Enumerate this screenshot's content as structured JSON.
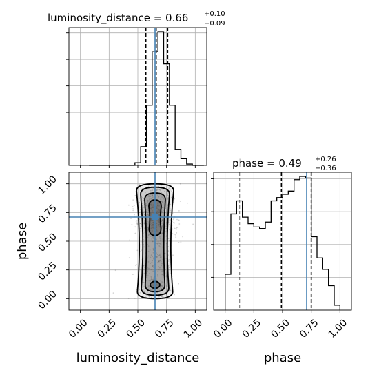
{
  "chart_data": [
    {
      "type": "histogram",
      "panel": "luminosity_distance 1D marginal",
      "title": "luminosity_distance = 0.66",
      "title_sup": "+0.10",
      "title_sub": "−0.09",
      "bins": [
        0.075,
        0.125,
        0.175,
        0.225,
        0.275,
        0.325,
        0.375,
        0.425,
        0.475,
        0.525,
        0.575,
        0.625,
        0.675,
        0.725,
        0.775,
        0.825,
        0.875,
        0.925,
        0.975,
        1.025
      ],
      "values": [
        0,
        0,
        0,
        0,
        0,
        0,
        0,
        0,
        0.02,
        0.14,
        0.45,
        0.85,
        1.0,
        0.76,
        0.45,
        0.12,
        0.05,
        0.01,
        0,
        0
      ],
      "quantiles": [
        0.57,
        0.66,
        0.76
      ],
      "truth": 0.65,
      "xlim": [
        -0.1,
        1.1
      ],
      "grid": true
    },
    {
      "type": "scatter",
      "panel": "phase vs luminosity_distance 2D",
      "xlabel": "luminosity_distance",
      "ylabel": "phase",
      "xticks": [
        "0.00",
        "0.25",
        "0.50",
        "0.75",
        "1.00"
      ],
      "yticks": [
        "0.00",
        "0.25",
        "0.50",
        "0.75",
        "1.00"
      ],
      "xlim": [
        -0.1,
        1.1
      ],
      "ylim": [
        -0.1,
        1.1
      ],
      "truth": {
        "x": 0.65,
        "y": 0.71
      },
      "contour_levels": 4,
      "grid": true
    },
    {
      "type": "histogram",
      "panel": "phase 1D marginal",
      "title": "phase = 0.49",
      "title_sup": "+0.26",
      "title_sub": "−0.36",
      "xlabel": "phase",
      "xticks": [
        "0.00",
        "0.25",
        "0.50",
        "0.75",
        "1.00"
      ],
      "bins": [
        0.0,
        0.05,
        0.1,
        0.15,
        0.2,
        0.25,
        0.3,
        0.35,
        0.4,
        0.45,
        0.5,
        0.55,
        0.6,
        0.65,
        0.7,
        0.75,
        0.8,
        0.85,
        0.9,
        0.95,
        1.0
      ],
      "values": [
        0.22,
        0.59,
        0.67,
        0.57,
        0.53,
        0.51,
        0.5,
        0.54,
        0.67,
        0.69,
        0.71,
        0.73,
        0.8,
        0.82,
        0.81,
        0.45,
        0.32,
        0.25,
        0.15,
        0.03
      ],
      "quantiles": [
        0.13,
        0.49,
        0.75
      ],
      "truth": 0.71,
      "xlim": [
        -0.1,
        1.1
      ],
      "grid": true
    }
  ],
  "colors": {
    "truth": "#4682b4",
    "hist": "#000000",
    "samples": "#555555",
    "contour_fill": "#444444"
  }
}
